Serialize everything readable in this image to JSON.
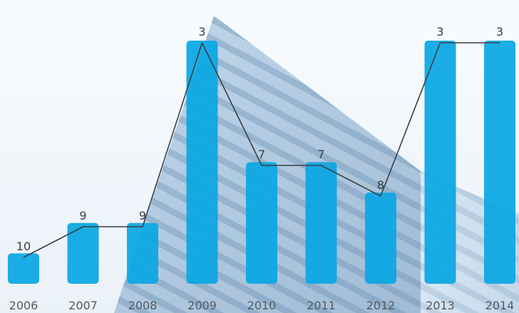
{
  "chart_data": {
    "type": "bar",
    "categories": [
      "2006",
      "2007",
      "2008",
      "2009",
      "2010",
      "2011",
      "2012",
      "2013",
      "2014"
    ],
    "bar_values": [
      1,
      2,
      2,
      8,
      4,
      4,
      3,
      8,
      8
    ],
    "line_labels": [
      "10",
      "9",
      "9",
      "3",
      "7",
      "7",
      "8",
      "3",
      "3"
    ],
    "line_values": [
      10,
      9,
      9,
      3,
      7,
      7,
      8,
      3,
      3
    ],
    "y_reversed_line": true,
    "bar_color": "#0aa7e3",
    "line_color": "#3a3f45",
    "background": "building photograph"
  }
}
